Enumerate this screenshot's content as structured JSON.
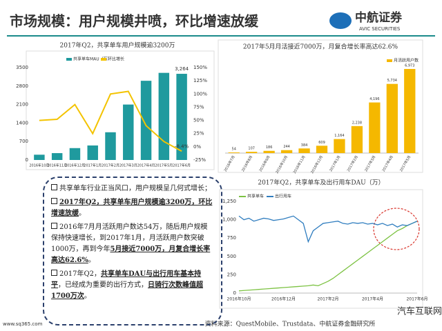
{
  "header": {
    "title": "市场规模：用户规模井喷，环比增速放缓",
    "logo": "中航证券",
    "logo_sub": "AVIC SECURITIES"
  },
  "chart_data": [
    {
      "type": "bar",
      "title": "2017年Q2，共享单车用户规模逾3200万",
      "categories": [
        "2016年10月",
        "2016年11月",
        "2016年12月",
        "2017年1月",
        "2017年2月",
        "2017年3月",
        "2017年4月",
        "2017年5月",
        "2017年6月"
      ],
      "series": [
        {
          "name": "共享单车MAU（万）",
          "color": "#1f9a9e",
          "values": [
            200,
            260,
            450,
            550,
            1050,
            2100,
            3000,
            3300,
            3264
          ],
          "value_labels": [
            null,
            null,
            null,
            null,
            null,
            null,
            null,
            null,
            "3,264"
          ]
        },
        {
          "name": "环比增长",
          "color": "#f3c300",
          "axis": "y2",
          "values": [
            50,
            52,
            80,
            25,
            100,
            105,
            40,
            10,
            -8.4
          ],
          "value_labels": [
            null,
            null,
            null,
            null,
            null,
            null,
            null,
            null,
            "-8.4%"
          ]
        }
      ],
      "ylim": [
        0,
        3500
      ],
      "yticks": [
        0,
        700,
        1400,
        2100,
        2800,
        3500
      ],
      "y2lim": [
        -25,
        150
      ],
      "y2ticks": [
        {
          "value": -25,
          "label": "-25%"
        },
        {
          "value": 0,
          "label": "0%"
        },
        {
          "value": 25,
          "label": "25%"
        },
        {
          "value": 50,
          "label": "50%"
        },
        {
          "value": 75,
          "label": "75%"
        },
        {
          "value": 100,
          "label": "100%"
        },
        {
          "value": 125,
          "label": "125%"
        },
        {
          "value": 150,
          "label": "150%"
        }
      ]
    },
    {
      "type": "bar",
      "title": "2017年5月月活接近7000万，月复合增长率高达62.6%",
      "categories": [
        "2016年7月",
        "2016年8月",
        "2016年9月",
        "2016年10月",
        "2016年11月",
        "2016年12月",
        "2017年1月",
        "2017年2月",
        "2017年3月",
        "2017年4月",
        "2017年5月"
      ],
      "series": [
        {
          "name": "月活跃用户数",
          "color": "#f5b800",
          "values": [
            54,
            107,
            186,
            244,
            384,
            609,
            1164,
            2238,
            4196,
            5734,
            6973
          ],
          "value_labels": [
            "54",
            "107",
            "186",
            "244",
            "384",
            "609",
            "1,164",
            "2,238",
            "4,196",
            "5,734",
            "6,973"
          ]
        }
      ]
    },
    {
      "type": "line",
      "title": "2017年Q2，共享单车及出行用车DAU（万）",
      "categories": [
        "2016年10月",
        null,
        null,
        null,
        null,
        null,
        null,
        null,
        null,
        "2016年12月",
        null,
        null,
        null,
        null,
        null,
        null,
        null,
        null,
        "2017年2月",
        null,
        null,
        null,
        null,
        null,
        null,
        null,
        null,
        "2017年4月",
        null,
        null,
        null,
        null,
        null,
        null,
        null,
        null,
        "2017年6月"
      ],
      "series": [
        {
          "name": "共享单车",
          "color": "#7cc242",
          "values": [
            30,
            35,
            40,
            45,
            50,
            55,
            60,
            65,
            70,
            75,
            80,
            85,
            90,
            95,
            100,
            110,
            100,
            130,
            160,
            200,
            250,
            300,
            350,
            400,
            450,
            500,
            550,
            600,
            650,
            700,
            750,
            800,
            850,
            880,
            920,
            950,
            980
          ]
        },
        {
          "name": "出行用车",
          "color": "#2f7dbf",
          "values": [
            1050,
            1000,
            1020,
            980,
            1000,
            1020,
            1010,
            990,
            1000,
            1010,
            1030,
            1050,
            1000,
            950,
            700,
            850,
            900,
            950,
            960,
            970,
            980,
            950,
            940,
            960,
            950,
            960,
            940,
            950,
            930,
            950,
            920,
            940,
            900,
            930,
            920,
            950,
            980
          ]
        }
      ],
      "ylim": [
        0,
        1250
      ],
      "yticks": [
        0,
        250,
        500,
        750,
        {
          "value": 1000,
          "label": "1,000"
        },
        {
          "value": 1250,
          "label": "1,250"
        }
      ]
    }
  ],
  "text_box": {
    "items": [
      [
        {
          "text": "共享单车行业正当风口，用户规模呈几何式增长；"
        }
      ],
      [
        {
          "text": "2017年Q2，共享单车用户规模逾3200万，环比增速放缓",
          "strong": true
        },
        {
          "text": "。"
        }
      ],
      [
        {
          "text": "2016年7月月活跃用户数达54万，随后用户规模保持快速增长，到2017年1月，月活跃用户数突破1000万，再到今年"
        },
        {
          "text": "5月接近7000万，月复合增长率高达62.6%",
          "strong": true
        },
        {
          "text": "。"
        }
      ],
      [
        {
          "text": "2017年Q2，"
        },
        {
          "text": "共享单车DAU与出行用车基本持平",
          "strong": true
        },
        {
          "text": "，已经成为重要的出行方式，"
        },
        {
          "text": "日骑行次数峰值超1700万次",
          "strong": true
        },
        {
          "text": "。"
        }
      ]
    ]
  },
  "footer": {
    "source": "资料来源：QuestMobile、Trustdata、中航证券金融研究所",
    "watermark": "汽车互联网",
    "site": "www.sq365.com"
  }
}
